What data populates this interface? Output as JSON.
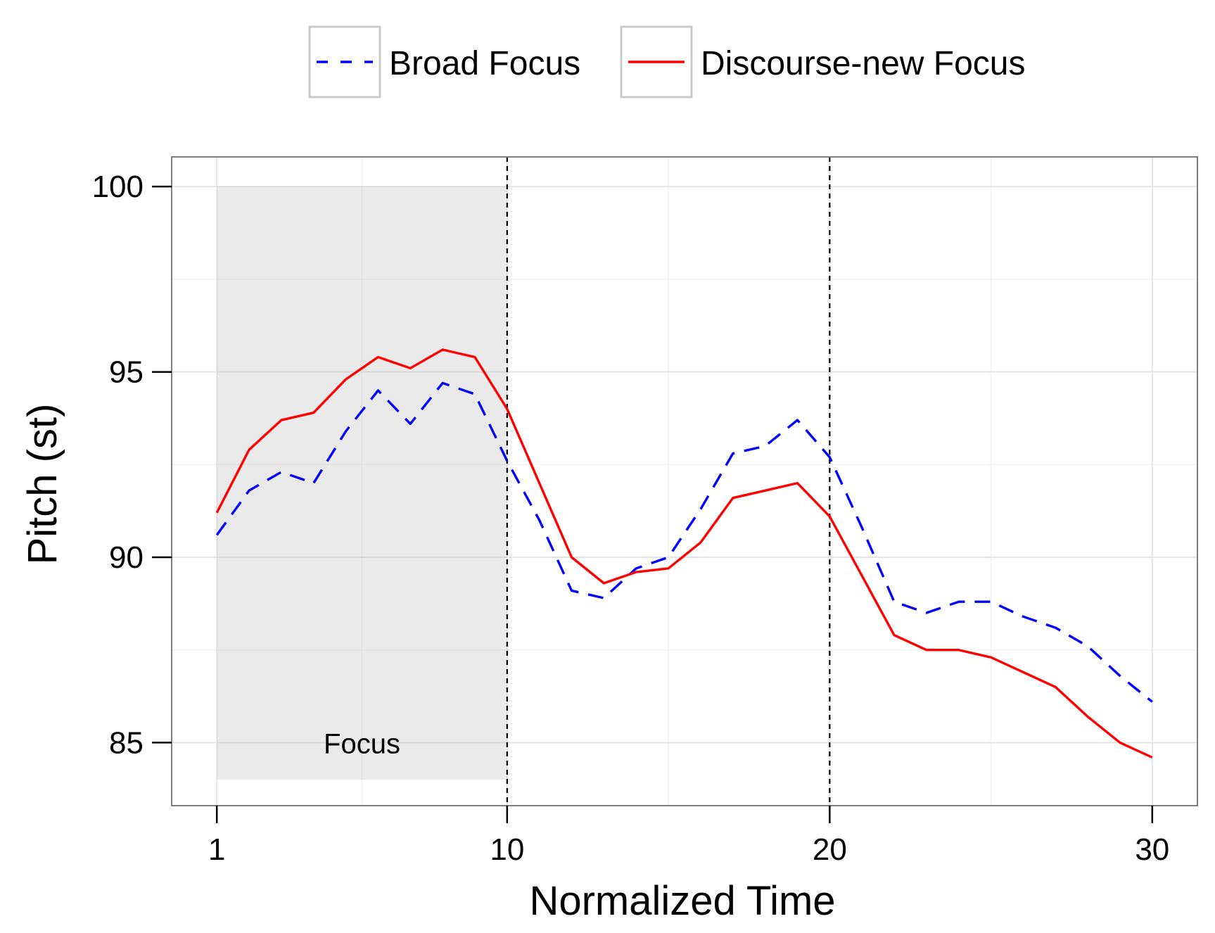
{
  "chart_data": {
    "type": "line",
    "xlabel": "Normalized Time",
    "ylabel": "Pitch (st)",
    "xlim": [
      -0.4,
      31.4
    ],
    "ylim": [
      83.3,
      100.8
    ],
    "x_ticks": [
      1,
      10,
      20,
      30
    ],
    "y_ticks": [
      85,
      90,
      95,
      100
    ],
    "grid": true,
    "legend_position": "top",
    "x": [
      1,
      2,
      3,
      4,
      5,
      6,
      7,
      8,
      9,
      10,
      11,
      12,
      13,
      14,
      15,
      16,
      17,
      18,
      19,
      20,
      21,
      22,
      23,
      24,
      25,
      26,
      27,
      28,
      29,
      30
    ],
    "series": [
      {
        "name": "Broad Focus",
        "color": "#0000ff",
        "line_style": "dashed",
        "values": [
          90.6,
          91.8,
          92.3,
          92.0,
          93.4,
          94.5,
          93.6,
          94.7,
          94.4,
          92.6,
          91.0,
          89.1,
          88.9,
          89.7,
          90.0,
          91.3,
          92.8,
          93.0,
          93.7,
          92.7,
          90.8,
          88.8,
          88.5,
          88.8,
          88.8,
          88.4,
          88.1,
          87.6,
          86.8,
          86.1
        ]
      },
      {
        "name": "Discourse-new Focus",
        "color": "#ff0000",
        "line_style": "solid",
        "values": [
          91.2,
          92.9,
          93.7,
          93.9,
          94.8,
          95.4,
          95.1,
          95.6,
          95.4,
          94.0,
          92.0,
          90.0,
          89.3,
          89.6,
          89.7,
          90.4,
          91.6,
          91.8,
          92.0,
          91.1,
          89.5,
          87.9,
          87.5,
          87.5,
          87.3,
          86.9,
          86.5,
          85.7,
          85.0,
          84.6
        ]
      }
    ],
    "shaded_region": {
      "x_start": 1,
      "x_end": 10,
      "y_start": 84.0,
      "y_end": 100,
      "label": "Focus"
    },
    "vertical_lines": [
      10,
      20
    ]
  }
}
